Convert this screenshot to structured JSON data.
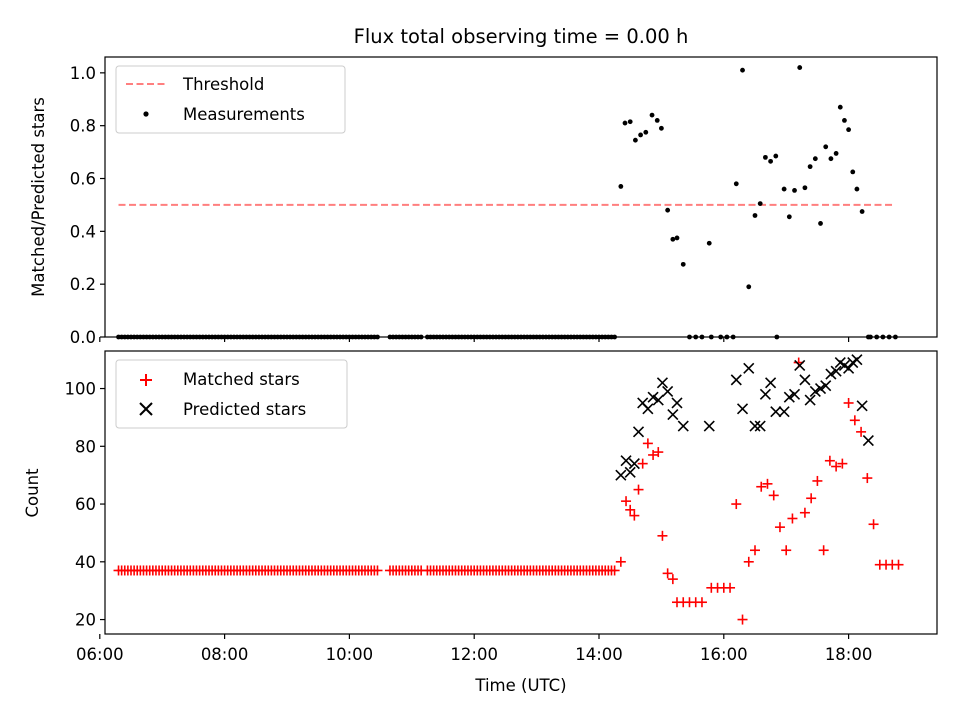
{
  "chart_data": {
    "title": "Flux total observing time = 0.00 h",
    "xlabel": "Time (UTC)",
    "xlim": [
      "06:05",
      "19:25"
    ],
    "xticks": [
      "06:00",
      "08:00",
      "10:00",
      "12:00",
      "14:00",
      "16:00",
      "18:00"
    ],
    "grid": false,
    "subplots": [
      {
        "type": "scatter",
        "ylabel": "Matched/Predicted stars",
        "ylim": [
          0,
          1.06
        ],
        "yticks": [
          "0.0",
          "0.2",
          "0.4",
          "0.6",
          "0.8",
          "1.0"
        ],
        "legend_position": "top-left",
        "legend": [
          "Threshold",
          "Measurements"
        ],
        "series": [
          {
            "name": "Threshold",
            "style": "dashed-line",
            "color": "#ff7f7f",
            "x": [
              "06:18",
              "18:45"
            ],
            "y": [
              0.5,
              0.5
            ]
          },
          {
            "name": "Measurements",
            "style": "dot",
            "color": "#000000",
            "zero_x": {
              "start": "06:18",
              "end": "14:15",
              "step_min": 3,
              "skip": [
                "10:30",
                "10:33",
                "10:36",
                "11:12"
              ]
            },
            "zero_x_extra": [
              "15:27",
              "15:33",
              "15:39",
              "15:48",
              "15:57",
              "16:03",
              "16:09",
              "16:51",
              "18:21",
              "18:27",
              "18:33",
              "18:39",
              "18:45"
            ],
            "x": [
              "14:21",
              "14:25",
              "14:30",
              "14:35",
              "14:40",
              "14:45",
              "14:51",
              "14:56",
              "15:00",
              "15:06",
              "15:11",
              "15:15",
              "15:21",
              "15:46",
              "16:12",
              "16:18",
              "16:24",
              "16:30",
              "16:35",
              "16:40",
              "16:45",
              "16:50",
              "16:58",
              "17:03",
              "17:08",
              "17:13",
              "17:18",
              "17:23",
              "17:28",
              "17:33",
              "17:38",
              "17:43",
              "17:48",
              "17:52",
              "17:56",
              "18:00",
              "18:04",
              "18:08",
              "18:13",
              "18:19"
            ],
            "y": [
              0.57,
              0.81,
              0.815,
              0.745,
              0.765,
              0.775,
              0.84,
              0.82,
              0.79,
              0.48,
              0.37,
              0.375,
              0.275,
              0.355,
              0.58,
              1.01,
              0.19,
              0.46,
              0.505,
              0.68,
              0.665,
              0.685,
              0.56,
              0.455,
              0.555,
              1.02,
              0.565,
              0.645,
              0.675,
              0.43,
              0.72,
              0.675,
              0.695,
              0.87,
              0.82,
              0.785,
              0.625,
              0.56,
              0.475,
              0.0
            ]
          }
        ]
      },
      {
        "type": "scatter",
        "ylabel": "Count",
        "ylim": [
          15,
          113
        ],
        "yticks": [
          "20",
          "40",
          "60",
          "80",
          "100"
        ],
        "legend_position": "top-left",
        "legend": [
          "Matched stars",
          "Predicted stars"
        ],
        "series": [
          {
            "name": "Matched stars",
            "marker": "plus",
            "color": "#ff0000",
            "baseline": {
              "start": "06:18",
              "end": "14:15",
              "step_min": 3,
              "value": 37,
              "skip": [
                "10:30",
                "10:33",
                "10:36",
                "11:12"
              ]
            },
            "x": [
              "14:21",
              "14:26",
              "14:30",
              "14:34",
              "14:38",
              "14:42",
              "14:47",
              "14:52",
              "14:57",
              "15:01",
              "15:06",
              "15:11",
              "15:15",
              "15:21",
              "15:27",
              "15:33",
              "15:39",
              "15:48",
              "15:54",
              "16:00",
              "16:06",
              "16:12",
              "16:18",
              "16:24",
              "16:30",
              "16:36",
              "16:42",
              "16:48",
              "16:54",
              "17:00",
              "17:06",
              "17:12",
              "17:18",
              "17:24",
              "17:30",
              "17:36",
              "17:42",
              "17:48",
              "17:54",
              "18:00",
              "18:06",
              "18:12",
              "18:18",
              "18:24",
              "18:30",
              "18:36",
              "18:42",
              "18:48"
            ],
            "y": [
              40,
              61,
              58,
              56,
              65,
              74,
              81,
              77,
              78,
              49,
              36,
              34,
              26,
              26,
              26,
              26,
              26,
              31,
              31,
              31,
              31,
              60,
              20,
              40,
              44,
              66,
              67,
              63,
              52,
              44,
              55,
              109,
              57,
              62,
              68,
              44,
              75,
              73,
              74,
              95,
              89,
              85,
              69,
              53,
              39,
              39,
              39,
              39
            ]
          },
          {
            "name": "Predicted stars",
            "marker": "x",
            "color": "#000000",
            "x": [
              "14:21",
              "14:26",
              "14:30",
              "14:34",
              "14:38",
              "14:42",
              "14:47",
              "14:52",
              "14:57",
              "15:01",
              "15:06",
              "15:11",
              "15:15",
              "15:21",
              "15:46",
              "16:12",
              "16:18",
              "16:24",
              "16:30",
              "16:35",
              "16:40",
              "16:45",
              "16:50",
              "16:58",
              "17:03",
              "17:08",
              "17:13",
              "17:18",
              "17:23",
              "17:28",
              "17:33",
              "17:38",
              "17:43",
              "17:48",
              "17:52",
              "17:56",
              "18:00",
              "18:04",
              "18:08",
              "18:13",
              "18:19"
            ],
            "y": [
              70,
              75,
              71,
              74,
              85,
              95,
              93,
              97,
              96,
              102,
              99,
              91,
              95,
              87,
              87,
              103,
              93,
              107,
              87,
              87,
              98,
              102,
              92,
              92,
              97,
              98,
              108,
              103,
              96,
              99,
              100,
              101,
              105,
              106,
              109,
              108,
              107,
              109,
              110,
              94,
              82
            ]
          }
        ]
      }
    ]
  }
}
